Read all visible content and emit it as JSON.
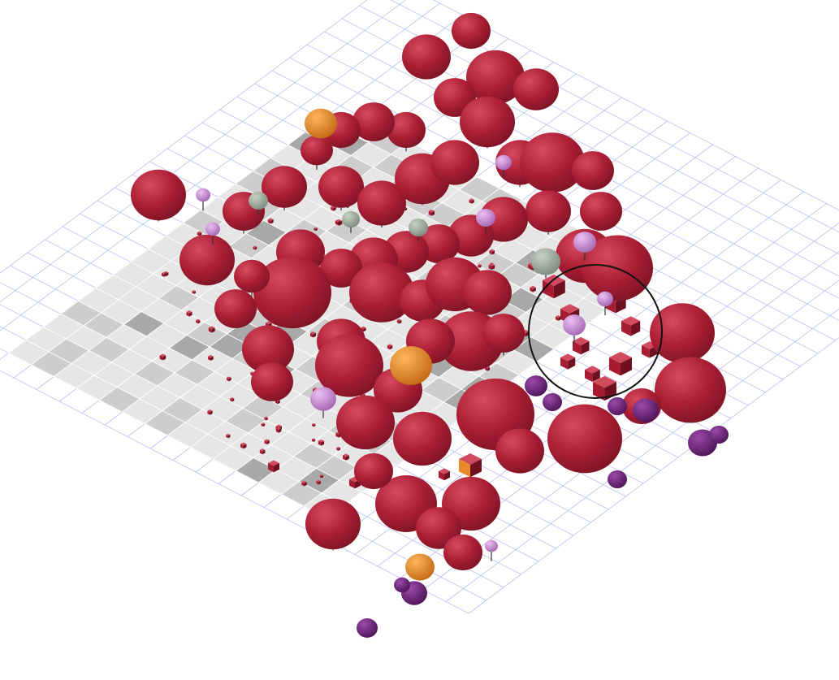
{
  "scene": {
    "colors": {
      "background": "#ffffff",
      "grid_line": "#b9bff0",
      "tile_light": "#e6e6e6",
      "tile_mid": "#cdcdcd",
      "tile_dark": "#a9a9a9",
      "red_object": "#a81c32",
      "red_object_light": "#c7344b",
      "purple_object": "#6e1f7c",
      "pink_object": "#c98ad6",
      "gray_object": "#9aa89a",
      "orange_object": "#e8892a",
      "highlight_ring": "#111111"
    },
    "legend_free": true
  }
}
